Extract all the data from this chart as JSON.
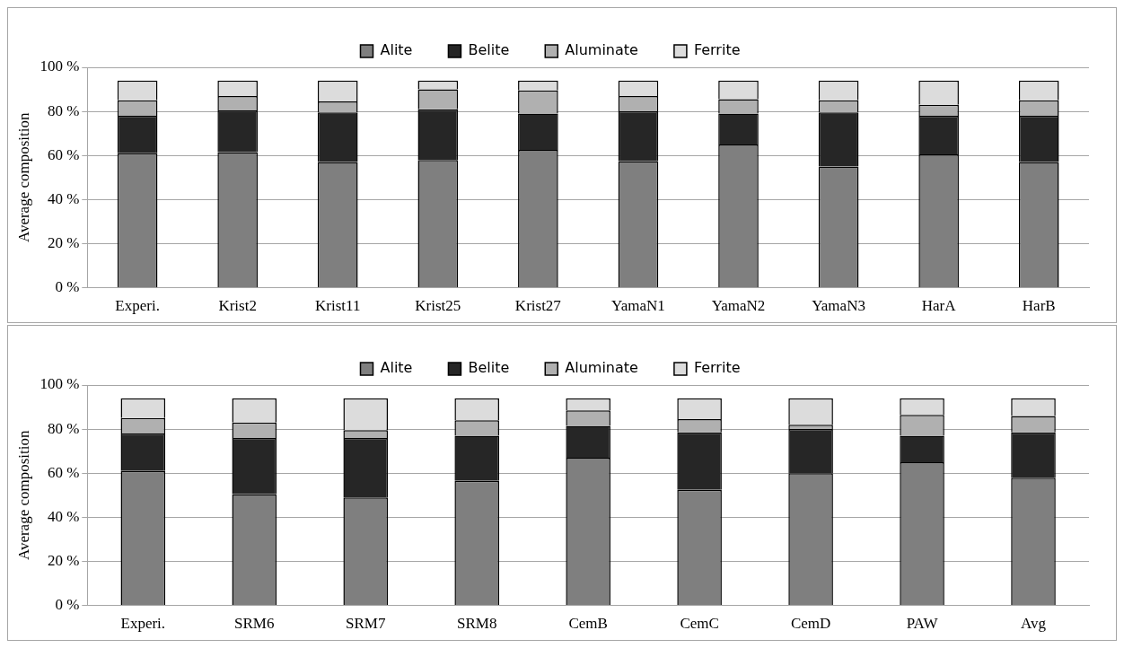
{
  "chart_data": [
    {
      "type": "bar",
      "stacked": true,
      "ylabel": "Average composition",
      "categories": [
        "Experi.",
        "Krist2",
        "Krist11",
        "Krist25",
        "Krist27",
        "YamaN1",
        "YamaN2",
        "YamaN3",
        "HarA",
        "HarB"
      ],
      "ylim": [
        0,
        100
      ],
      "yticks": [
        {
          "value": 0,
          "label": "0 %"
        },
        {
          "value": 20,
          "label": "20 %"
        },
        {
          "value": 40,
          "label": "40 %"
        },
        {
          "value": 60,
          "label": "60 %"
        },
        {
          "value": 80,
          "label": "80 %"
        },
        {
          "value": 100,
          "label": "100 %"
        }
      ],
      "grid": "y",
      "legend": "top",
      "series": [
        {
          "name": "Alite",
          "color": "#7f7f7f",
          "values": [
            61,
            61.5,
            57,
            58,
            62.5,
            57.5,
            65,
            55,
            60.5,
            57
          ]
        },
        {
          "name": "Belite",
          "color": "#262626",
          "values": [
            17,
            19,
            22.5,
            23,
            16.5,
            22.5,
            14,
            24.5,
            17.5,
            21
          ]
        },
        {
          "name": "Aluminate",
          "color": "#b0b0b0",
          "values": [
            7,
            6.5,
            5,
            9,
            10.5,
            7,
            6.5,
            5.5,
            5,
            7
          ]
        },
        {
          "name": "Ferrite",
          "color": "#dcdcdc",
          "values": [
            9,
            7,
            9.5,
            4,
            4.5,
            7,
            8.5,
            9,
            11,
            9
          ]
        }
      ]
    },
    {
      "type": "bar",
      "stacked": true,
      "ylabel": "Average composition",
      "categories": [
        "Experi.",
        "SRM6",
        "SRM7",
        "SRM8",
        "CemB",
        "CemC",
        "CemD",
        "PAW",
        "Avg"
      ],
      "ylim": [
        0,
        100
      ],
      "yticks": [
        {
          "value": 0,
          "label": "0 %"
        },
        {
          "value": 20,
          "label": "20 %"
        },
        {
          "value": 40,
          "label": "40 %"
        },
        {
          "value": 60,
          "label": "60 %"
        },
        {
          "value": 80,
          "label": "80 %"
        },
        {
          "value": 100,
          "label": "100 %"
        }
      ],
      "grid": "y",
      "legend": "top",
      "series": [
        {
          "name": "Alite",
          "color": "#7f7f7f",
          "values": [
            61,
            50.5,
            49,
            56.5,
            67,
            52.5,
            60,
            65,
            58
          ]
        },
        {
          "name": "Belite",
          "color": "#262626",
          "values": [
            17,
            25.5,
            27,
            20.5,
            14.5,
            26,
            20,
            12,
            20.5
          ]
        },
        {
          "name": "Aluminate",
          "color": "#b0b0b0",
          "values": [
            7,
            7,
            3.5,
            7,
            7,
            6,
            2,
            9.5,
            7.5
          ]
        },
        {
          "name": "Ferrite",
          "color": "#dcdcdc",
          "values": [
            9,
            11,
            14.5,
            10,
            5.5,
            9.5,
            12,
            7.5,
            8
          ]
        }
      ]
    }
  ]
}
